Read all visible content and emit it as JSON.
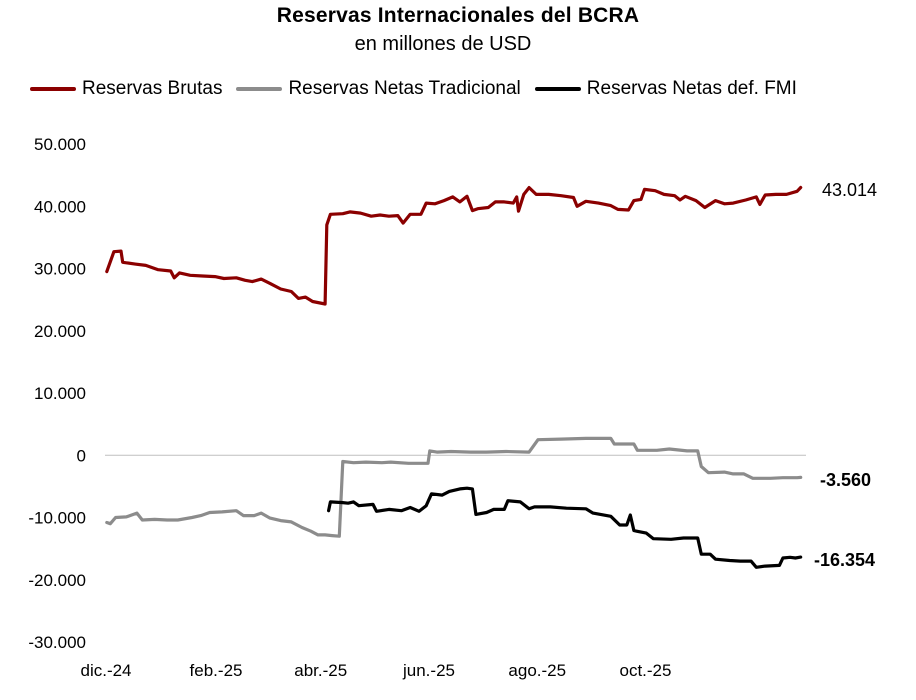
{
  "chart_data": {
    "type": "line",
    "title": "Reservas Internacionales del BCRA",
    "subtitle": "en millones de USD",
    "xlabel": "",
    "ylabel": "",
    "ylim": [
      -30000,
      50000
    ],
    "yticks": [
      -30000,
      -20000,
      -10000,
      0,
      10000,
      20000,
      30000,
      40000,
      50000
    ],
    "ytick_labels": [
      "-30.000",
      "-20.000",
      "-10.000",
      "0",
      "10.000",
      "20.000",
      "30.000",
      "40.000",
      "50.000"
    ],
    "xlim": [
      "2024-12-01",
      "2025-12-31"
    ],
    "xtick_dates": [
      "2024-12-01",
      "2025-02-01",
      "2025-04-01",
      "2025-06-01",
      "2025-08-01",
      "2025-10-01"
    ],
    "xtick_labels": [
      "dic.-24",
      "feb.-25",
      "abr.-25",
      "jun.-25",
      "ago.-25",
      "oct.-25"
    ],
    "zero_line": true,
    "grid": false,
    "legend_position": "top",
    "series": [
      {
        "name": "Reservas Brutas",
        "color": "#8B0000",
        "end_label": "43.014",
        "end_label_bold": false,
        "points": [
          [
            "2024-12-02",
            29500
          ],
          [
            "2024-12-06",
            32700
          ],
          [
            "2024-12-10",
            32800
          ],
          [
            "2024-12-11",
            31000
          ],
          [
            "2024-12-18",
            30700
          ],
          [
            "2024-12-24",
            30500
          ],
          [
            "2024-12-31",
            29800
          ],
          [
            "2025-01-07",
            29600
          ],
          [
            "2025-01-09",
            28500
          ],
          [
            "2025-01-12",
            29300
          ],
          [
            "2025-01-18",
            28900
          ],
          [
            "2025-01-25",
            28800
          ],
          [
            "2025-02-01",
            28700
          ],
          [
            "2025-02-06",
            28400
          ],
          [
            "2025-02-13",
            28500
          ],
          [
            "2025-02-18",
            28100
          ],
          [
            "2025-02-22",
            27900
          ],
          [
            "2025-02-27",
            28300
          ],
          [
            "2025-03-04",
            27600
          ],
          [
            "2025-03-10",
            26700
          ],
          [
            "2025-03-16",
            26300
          ],
          [
            "2025-03-20",
            25200
          ],
          [
            "2025-03-24",
            25400
          ],
          [
            "2025-03-28",
            24700
          ],
          [
            "2025-04-04",
            24300
          ],
          [
            "2025-04-05",
            37000
          ],
          [
            "2025-04-07",
            38700
          ],
          [
            "2025-04-14",
            38800
          ],
          [
            "2025-04-18",
            39100
          ],
          [
            "2025-04-24",
            38900
          ],
          [
            "2025-04-30",
            38400
          ],
          [
            "2025-05-05",
            38600
          ],
          [
            "2025-05-10",
            38400
          ],
          [
            "2025-05-15",
            38500
          ],
          [
            "2025-05-18",
            37300
          ],
          [
            "2025-05-22",
            38700
          ],
          [
            "2025-05-28",
            38700
          ],
          [
            "2025-05-31",
            40500
          ],
          [
            "2025-06-05",
            40400
          ],
          [
            "2025-06-10",
            40900
          ],
          [
            "2025-06-15",
            41500
          ],
          [
            "2025-06-19",
            40700
          ],
          [
            "2025-06-23",
            41600
          ],
          [
            "2025-06-26",
            39300
          ],
          [
            "2025-06-29",
            39600
          ],
          [
            "2025-07-05",
            39800
          ],
          [
            "2025-07-09",
            40700
          ],
          [
            "2025-07-14",
            40700
          ],
          [
            "2025-07-19",
            40500
          ],
          [
            "2025-07-21",
            41500
          ],
          [
            "2025-07-22",
            39200
          ],
          [
            "2025-07-25",
            41900
          ],
          [
            "2025-07-28",
            43000
          ],
          [
            "2025-08-01",
            41900
          ],
          [
            "2025-08-08",
            41900
          ],
          [
            "2025-08-15",
            41700
          ],
          [
            "2025-08-22",
            41400
          ],
          [
            "2025-08-24",
            40000
          ],
          [
            "2025-08-29",
            40800
          ],
          [
            "2025-09-05",
            40500
          ],
          [
            "2025-09-12",
            40100
          ],
          [
            "2025-09-16",
            39500
          ],
          [
            "2025-09-22",
            39400
          ],
          [
            "2025-09-25",
            40900
          ],
          [
            "2025-09-29",
            41100
          ],
          [
            "2025-10-01",
            42700
          ],
          [
            "2025-10-07",
            42500
          ],
          [
            "2025-10-12",
            41900
          ],
          [
            "2025-10-18",
            41700
          ],
          [
            "2025-10-21",
            41000
          ],
          [
            "2025-10-24",
            41600
          ],
          [
            "2025-10-30",
            40900
          ],
          [
            "2025-11-04",
            39800
          ],
          [
            "2025-11-10",
            40900
          ],
          [
            "2025-11-15",
            40400
          ],
          [
            "2025-11-20",
            40500
          ],
          [
            "2025-11-27",
            41000
          ],
          [
            "2025-12-03",
            41500
          ],
          [
            "2025-12-05",
            40300
          ],
          [
            "2025-12-08",
            41800
          ],
          [
            "2025-12-14",
            41900
          ],
          [
            "2025-12-20",
            41900
          ],
          [
            "2025-12-26",
            42400
          ],
          [
            "2025-12-28",
            43014
          ]
        ]
      },
      {
        "name": "Reservas Netas Tradicional",
        "color": "#8c8c8c",
        "end_label": "-3.560",
        "end_label_bold": true,
        "points": [
          [
            "2024-12-02",
            -10800
          ],
          [
            "2024-12-04",
            -11000
          ],
          [
            "2024-12-07",
            -10000
          ],
          [
            "2024-12-13",
            -9900
          ],
          [
            "2024-12-19",
            -9300
          ],
          [
            "2024-12-22",
            -10400
          ],
          [
            "2024-12-29",
            -10300
          ],
          [
            "2025-01-05",
            -10400
          ],
          [
            "2025-01-11",
            -10400
          ],
          [
            "2025-01-19",
            -10000
          ],
          [
            "2025-01-24",
            -9700
          ],
          [
            "2025-01-29",
            -9200
          ],
          [
            "2025-02-05",
            -9100
          ],
          [
            "2025-02-13",
            -8900
          ],
          [
            "2025-02-17",
            -9700
          ],
          [
            "2025-02-23",
            -9700
          ],
          [
            "2025-02-27",
            -9300
          ],
          [
            "2025-03-04",
            -10100
          ],
          [
            "2025-03-10",
            -10500
          ],
          [
            "2025-03-16",
            -10700
          ],
          [
            "2025-03-22",
            -11600
          ],
          [
            "2025-03-27",
            -12200
          ],
          [
            "2025-03-31",
            -12800
          ],
          [
            "2025-04-04",
            -12800
          ],
          [
            "2025-04-08",
            -12900
          ],
          [
            "2025-04-12",
            -13000
          ],
          [
            "2025-04-14",
            -1000
          ],
          [
            "2025-04-20",
            -1200
          ],
          [
            "2025-04-27",
            -1100
          ],
          [
            "2025-05-06",
            -1200
          ],
          [
            "2025-05-11",
            -1100
          ],
          [
            "2025-05-21",
            -1300
          ],
          [
            "2025-06-01",
            -1300
          ],
          [
            "2025-06-02",
            700
          ],
          [
            "2025-06-06",
            500
          ],
          [
            "2025-06-14",
            600
          ],
          [
            "2025-06-25",
            500
          ],
          [
            "2025-07-04",
            500
          ],
          [
            "2025-07-15",
            600
          ],
          [
            "2025-07-28",
            500
          ],
          [
            "2025-08-02",
            2500
          ],
          [
            "2025-08-15",
            2600
          ],
          [
            "2025-08-29",
            2700
          ],
          [
            "2025-09-12",
            2700
          ],
          [
            "2025-09-14",
            1800
          ],
          [
            "2025-09-25",
            1800
          ],
          [
            "2025-09-27",
            800
          ],
          [
            "2025-10-08",
            800
          ],
          [
            "2025-10-15",
            1000
          ],
          [
            "2025-10-25",
            700
          ],
          [
            "2025-10-31",
            700
          ],
          [
            "2025-11-02",
            -1800
          ],
          [
            "2025-11-06",
            -2800
          ],
          [
            "2025-11-15",
            -2700
          ],
          [
            "2025-11-20",
            -3000
          ],
          [
            "2025-11-26",
            -3000
          ],
          [
            "2025-12-01",
            -3700
          ],
          [
            "2025-12-11",
            -3700
          ],
          [
            "2025-12-18",
            -3600
          ],
          [
            "2025-12-26",
            -3600
          ],
          [
            "2025-12-28",
            -3560
          ]
        ]
      },
      {
        "name": "Reservas Netas def. FMI",
        "color": "#000000",
        "end_label": "-16.354",
        "end_label_bold": true,
        "points": [
          [
            "2025-04-06",
            -8900
          ],
          [
            "2025-04-07",
            -7500
          ],
          [
            "2025-04-14",
            -7600
          ],
          [
            "2025-04-17",
            -7700
          ],
          [
            "2025-04-20",
            -7500
          ],
          [
            "2025-04-23",
            -8100
          ],
          [
            "2025-05-01",
            -7900
          ],
          [
            "2025-05-03",
            -9000
          ],
          [
            "2025-05-10",
            -8700
          ],
          [
            "2025-05-17",
            -8900
          ],
          [
            "2025-05-22",
            -8400
          ],
          [
            "2025-05-27",
            -9000
          ],
          [
            "2025-05-31",
            -8100
          ],
          [
            "2025-06-03",
            -6200
          ],
          [
            "2025-06-09",
            -6400
          ],
          [
            "2025-06-13",
            -5800
          ],
          [
            "2025-06-19",
            -5400
          ],
          [
            "2025-06-23",
            -5300
          ],
          [
            "2025-06-26",
            -5400
          ],
          [
            "2025-06-28",
            -9500
          ],
          [
            "2025-07-04",
            -9200
          ],
          [
            "2025-07-08",
            -8700
          ],
          [
            "2025-07-14",
            -8700
          ],
          [
            "2025-07-16",
            -7300
          ],
          [
            "2025-07-23",
            -7500
          ],
          [
            "2025-07-28",
            -8600
          ],
          [
            "2025-07-31",
            -8300
          ],
          [
            "2025-08-09",
            -8300
          ],
          [
            "2025-08-18",
            -8500
          ],
          [
            "2025-08-29",
            -8600
          ],
          [
            "2025-09-02",
            -9300
          ],
          [
            "2025-09-12",
            -9800
          ],
          [
            "2025-09-17",
            -11200
          ],
          [
            "2025-09-21",
            -11200
          ],
          [
            "2025-09-23",
            -9600
          ],
          [
            "2025-09-25",
            -12100
          ],
          [
            "2025-10-02",
            -12500
          ],
          [
            "2025-10-06",
            -13400
          ],
          [
            "2025-10-16",
            -13500
          ],
          [
            "2025-10-23",
            -13300
          ],
          [
            "2025-10-31",
            -13300
          ],
          [
            "2025-11-02",
            -15900
          ],
          [
            "2025-11-07",
            -15900
          ],
          [
            "2025-11-10",
            -16700
          ],
          [
            "2025-11-18",
            -16900
          ],
          [
            "2025-11-24",
            -17000
          ],
          [
            "2025-11-30",
            -17000
          ],
          [
            "2025-12-03",
            -18000
          ],
          [
            "2025-12-08",
            -17800
          ],
          [
            "2025-12-16",
            -17700
          ],
          [
            "2025-12-18",
            -16500
          ],
          [
            "2025-12-22",
            -16400
          ],
          [
            "2025-12-25",
            -16500
          ],
          [
            "2025-12-28",
            -16354
          ]
        ]
      }
    ]
  }
}
